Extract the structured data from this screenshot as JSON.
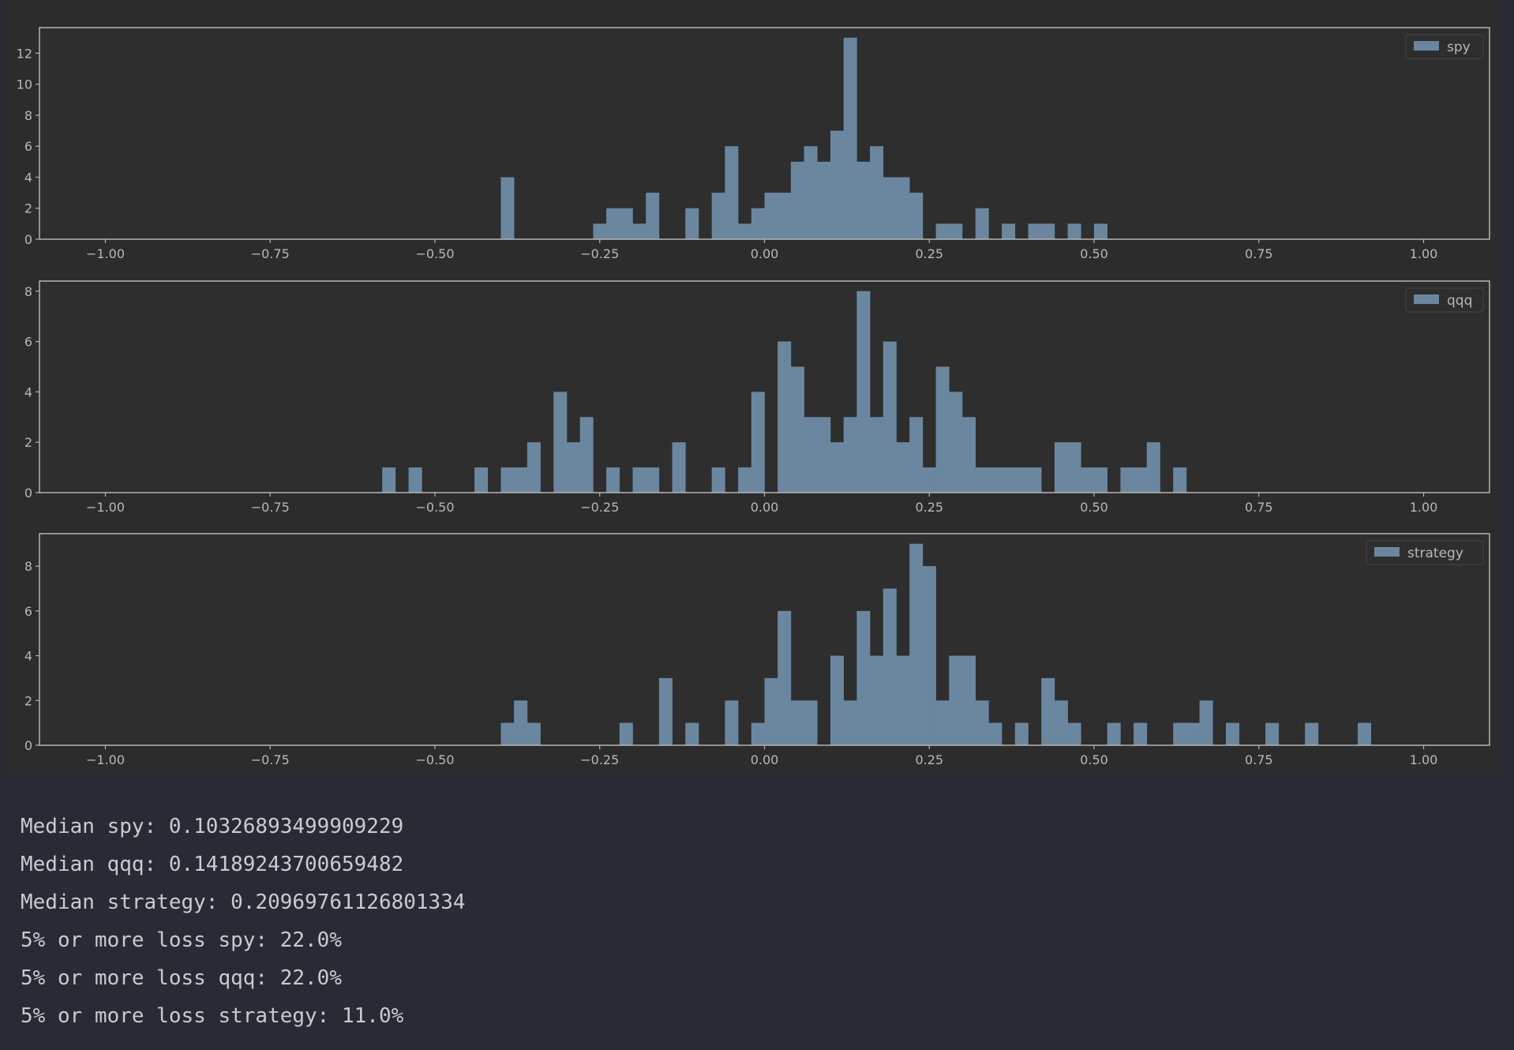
{
  "colors": {
    "background": "#282b33",
    "figure": "#2c2c2c",
    "axes": "#2e2e2e",
    "spine": "#b4b4b4",
    "bar": "#6b87a0",
    "text": "#b8b8b8"
  },
  "chart_data": [
    {
      "type": "bar",
      "legend": "spy",
      "legend_position": "top-right",
      "xlim": [
        -1.1,
        1.1
      ],
      "ylim": [
        0,
        13.65
      ],
      "xticks": [
        "−1.00",
        "−0.75",
        "−0.50",
        "−0.25",
        "0.00",
        "0.25",
        "0.50",
        "0.75",
        "1.00"
      ],
      "yticks": [
        "0",
        "2",
        "4",
        "6",
        "8",
        "10",
        "12"
      ],
      "bin_width": 0.02,
      "bins": [
        [
          -0.4,
          4
        ],
        [
          -0.26,
          1
        ],
        [
          -0.24,
          2
        ],
        [
          -0.22,
          2
        ],
        [
          -0.2,
          1
        ],
        [
          -0.18,
          3
        ],
        [
          -0.12,
          2
        ],
        [
          -0.08,
          3
        ],
        [
          -0.06,
          6
        ],
        [
          -0.04,
          1
        ],
        [
          -0.02,
          2
        ],
        [
          0.0,
          3
        ],
        [
          0.02,
          3
        ],
        [
          0.04,
          5
        ],
        [
          0.06,
          6
        ],
        [
          0.08,
          5
        ],
        [
          0.1,
          7
        ],
        [
          0.12,
          13
        ],
        [
          0.14,
          5
        ],
        [
          0.16,
          6
        ],
        [
          0.18,
          4
        ],
        [
          0.2,
          4
        ],
        [
          0.22,
          3
        ],
        [
          0.26,
          1
        ],
        [
          0.28,
          1
        ],
        [
          0.32,
          2
        ],
        [
          0.36,
          1
        ],
        [
          0.4,
          1
        ],
        [
          0.42,
          1
        ],
        [
          0.46,
          1
        ],
        [
          0.5,
          1
        ]
      ]
    },
    {
      "type": "bar",
      "legend": "qqq",
      "legend_position": "top-right",
      "xlim": [
        -1.1,
        1.1
      ],
      "ylim": [
        0,
        8.4
      ],
      "xticks": [
        "−1.00",
        "−0.75",
        "−0.50",
        "−0.25",
        "0.00",
        "0.25",
        "0.50",
        "0.75",
        "1.00"
      ],
      "yticks": [
        "0",
        "2",
        "4",
        "6",
        "8"
      ],
      "bin_width": 0.02,
      "bins": [
        [
          -0.58,
          1
        ],
        [
          -0.54,
          1
        ],
        [
          -0.44,
          1
        ],
        [
          -0.4,
          1
        ],
        [
          -0.38,
          1
        ],
        [
          -0.36,
          2
        ],
        [
          -0.32,
          4
        ],
        [
          -0.3,
          2
        ],
        [
          -0.28,
          3
        ],
        [
          -0.24,
          1
        ],
        [
          -0.2,
          1
        ],
        [
          -0.18,
          1
        ],
        [
          -0.14,
          2
        ],
        [
          -0.08,
          1
        ],
        [
          -0.04,
          1
        ],
        [
          -0.02,
          4
        ],
        [
          0.02,
          6
        ],
        [
          0.04,
          5
        ],
        [
          0.06,
          3
        ],
        [
          0.08,
          3
        ],
        [
          0.1,
          2
        ],
        [
          0.12,
          3
        ],
        [
          0.14,
          8
        ],
        [
          0.16,
          3
        ],
        [
          0.18,
          6
        ],
        [
          0.2,
          2
        ],
        [
          0.22,
          3
        ],
        [
          0.24,
          1
        ],
        [
          0.26,
          5
        ],
        [
          0.28,
          4
        ],
        [
          0.3,
          3
        ],
        [
          0.32,
          1
        ],
        [
          0.34,
          1
        ],
        [
          0.36,
          1
        ],
        [
          0.38,
          1
        ],
        [
          0.4,
          1
        ],
        [
          0.44,
          2
        ],
        [
          0.46,
          2
        ],
        [
          0.48,
          1
        ],
        [
          0.5,
          1
        ],
        [
          0.54,
          1
        ],
        [
          0.56,
          1
        ],
        [
          0.58,
          2
        ],
        [
          0.62,
          1
        ]
      ]
    },
    {
      "type": "bar",
      "legend": "strategy",
      "legend_position": "top-right",
      "xlim": [
        -1.1,
        1.1
      ],
      "ylim": [
        0,
        9.45
      ],
      "xticks": [
        "−1.00",
        "−0.75",
        "−0.50",
        "−0.25",
        "0.00",
        "0.25",
        "0.50",
        "0.75",
        "1.00"
      ],
      "yticks": [
        "0",
        "2",
        "4",
        "6",
        "8"
      ],
      "bin_width": 0.02,
      "bins": [
        [
          -0.4,
          1
        ],
        [
          -0.38,
          2
        ],
        [
          -0.36,
          1
        ],
        [
          -0.22,
          1
        ],
        [
          -0.16,
          3
        ],
        [
          -0.12,
          1
        ],
        [
          -0.06,
          2
        ],
        [
          -0.02,
          1
        ],
        [
          0.0,
          3
        ],
        [
          0.02,
          6
        ],
        [
          0.04,
          2
        ],
        [
          0.06,
          2
        ],
        [
          0.1,
          4
        ],
        [
          0.12,
          2
        ],
        [
          0.14,
          6
        ],
        [
          0.16,
          4
        ],
        [
          0.18,
          7
        ],
        [
          0.2,
          4
        ],
        [
          0.22,
          9
        ],
        [
          0.24,
          8
        ],
        [
          0.26,
          2
        ],
        [
          0.28,
          4
        ],
        [
          0.3,
          4
        ],
        [
          0.32,
          2
        ],
        [
          0.34,
          1
        ],
        [
          0.38,
          1
        ],
        [
          0.42,
          3
        ],
        [
          0.44,
          2
        ],
        [
          0.46,
          1
        ],
        [
          0.52,
          1
        ],
        [
          0.56,
          1
        ],
        [
          0.62,
          1
        ],
        [
          0.64,
          1
        ],
        [
          0.66,
          2
        ],
        [
          0.7,
          1
        ],
        [
          0.76,
          1
        ],
        [
          0.82,
          1
        ],
        [
          0.9,
          1
        ]
      ]
    }
  ],
  "output": {
    "lines": [
      "Median spy: 0.10326893499909229",
      "Median qqq: 0.14189243700659482",
      "Median strategy: 0.20969761126801334",
      "5% or more loss spy: 22.0%",
      "5% or more loss qqq: 22.0%",
      "5% or more loss strategy: 11.0%"
    ]
  }
}
